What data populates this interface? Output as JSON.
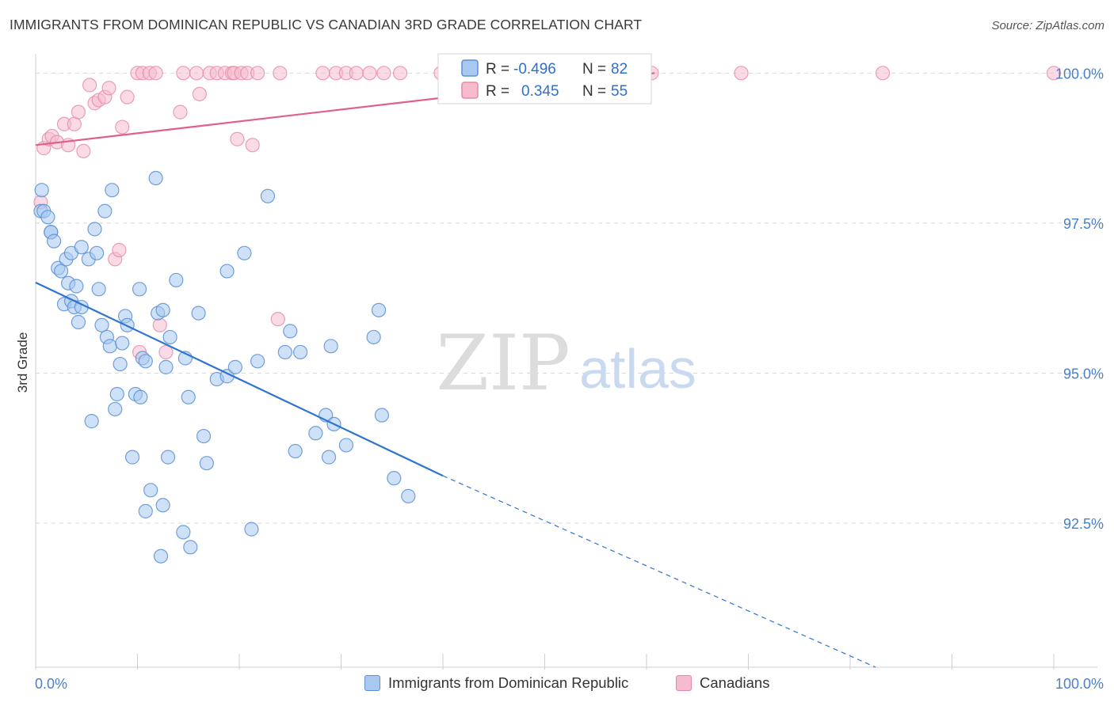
{
  "header": {
    "title": "IMMIGRANTS FROM DOMINICAN REPUBLIC VS CANADIAN 3RD GRADE CORRELATION CHART",
    "source": "Source: ZipAtlas.com"
  },
  "watermark": {
    "zip": "ZIP",
    "atlas": "atlas"
  },
  "colors": {
    "blue_fill": "#a8c8f0",
    "blue_stroke": "#5b8fd6",
    "blue_line": "#2f74d0",
    "pink_fill": "#f6bccd",
    "pink_stroke": "#e58aa6",
    "pink_line": "#e0608a",
    "tick_label": "#4a80c8",
    "grid": "#d8d8d8"
  },
  "legend_stats": [
    {
      "r_label": "R =",
      "r_value": "-0.496",
      "n_label": "N =",
      "n_value": "82"
    },
    {
      "r_label": "R =",
      "r_value": "0.345",
      "n_label": "N =",
      "n_value": "55"
    }
  ],
  "legend_bottom": [
    "Immigrants from Dominican Republic",
    "Canadians"
  ],
  "chart_data": {
    "type": "scatter",
    "xlabel": "",
    "ylabel": "3rd Grade",
    "xlim": [
      0,
      100
    ],
    "ylim": [
      90.1,
      100.4
    ],
    "x_tick_labels": [
      "0.0%",
      "100.0%"
    ],
    "y_ticks": [
      92.5,
      95.0,
      97.5,
      100.0
    ],
    "y_tick_labels": [
      "92.5%",
      "95.0%",
      "97.5%",
      "100.0%"
    ],
    "grid": true,
    "legend_position": "top-center",
    "series": [
      {
        "name": "Immigrants from Dominican Republic",
        "trend": {
          "x": [
            0,
            40
          ],
          "y": [
            96.51,
            93.29
          ],
          "dashed_to": [
            82.5,
            90.1
          ]
        },
        "points": [
          [
            0.5,
            97.7
          ],
          [
            0.6,
            98.05
          ],
          [
            0.8,
            97.7
          ],
          [
            1.2,
            97.6
          ],
          [
            1.5,
            97.35
          ],
          [
            1.5,
            97.35
          ],
          [
            1.8,
            97.2
          ],
          [
            2.2,
            96.75
          ],
          [
            2.5,
            96.7
          ],
          [
            2.8,
            96.15
          ],
          [
            3.0,
            96.9
          ],
          [
            3.2,
            96.5
          ],
          [
            3.5,
            97.0
          ],
          [
            3.5,
            96.2
          ],
          [
            3.8,
            96.1
          ],
          [
            4.0,
            96.45
          ],
          [
            4.2,
            95.85
          ],
          [
            4.5,
            96.1
          ],
          [
            4.5,
            97.1
          ],
          [
            5.2,
            96.9
          ],
          [
            5.5,
            94.2
          ],
          [
            5.8,
            97.4
          ],
          [
            6.0,
            97.0
          ],
          [
            6.2,
            96.4
          ],
          [
            6.5,
            95.8
          ],
          [
            6.8,
            97.7
          ],
          [
            7.0,
            95.6
          ],
          [
            7.3,
            95.45
          ],
          [
            7.5,
            98.05
          ],
          [
            7.8,
            94.4
          ],
          [
            8.0,
            94.65
          ],
          [
            8.3,
            95.15
          ],
          [
            8.5,
            95.5
          ],
          [
            8.8,
            95.95
          ],
          [
            9.0,
            95.8
          ],
          [
            9.5,
            93.6
          ],
          [
            9.8,
            94.65
          ],
          [
            10.2,
            96.4
          ],
          [
            10.3,
            94.6
          ],
          [
            10.5,
            95.25
          ],
          [
            10.8,
            95.2
          ],
          [
            10.8,
            92.7
          ],
          [
            11.3,
            93.05
          ],
          [
            11.8,
            98.25
          ],
          [
            12.0,
            96.0
          ],
          [
            12.3,
            91.95
          ],
          [
            12.5,
            92.8
          ],
          [
            12.5,
            96.05
          ],
          [
            12.8,
            95.1
          ],
          [
            13.0,
            93.6
          ],
          [
            13.2,
            95.6
          ],
          [
            13.8,
            96.55
          ],
          [
            14.5,
            92.35
          ],
          [
            14.7,
            95.25
          ],
          [
            15.0,
            94.6
          ],
          [
            15.2,
            92.1
          ],
          [
            16.0,
            96.0
          ],
          [
            16.5,
            93.95
          ],
          [
            16.8,
            93.5
          ],
          [
            17.8,
            94.9
          ],
          [
            18.8,
            96.7
          ],
          [
            18.8,
            94.95
          ],
          [
            19.6,
            95.1
          ],
          [
            20.5,
            97.0
          ],
          [
            21.2,
            92.4
          ],
          [
            21.8,
            95.2
          ],
          [
            22.8,
            97.95
          ],
          [
            24.5,
            95.35
          ],
          [
            25.0,
            95.7
          ],
          [
            25.5,
            93.7
          ],
          [
            26.0,
            95.35
          ],
          [
            27.5,
            94.0
          ],
          [
            28.5,
            94.3
          ],
          [
            28.8,
            93.6
          ],
          [
            29.0,
            95.45
          ],
          [
            29.3,
            94.15
          ],
          [
            30.5,
            93.8
          ],
          [
            33.2,
            95.6
          ],
          [
            33.7,
            96.05
          ],
          [
            34.0,
            94.3
          ],
          [
            35.2,
            93.25
          ],
          [
            36.6,
            92.95
          ]
        ]
      },
      {
        "name": "Canadians",
        "trend": {
          "x": [
            0,
            60.8
          ],
          "y": [
            98.8,
            100.0
          ]
        },
        "points": [
          [
            0.5,
            97.85
          ],
          [
            0.8,
            98.75
          ],
          [
            1.3,
            98.9
          ],
          [
            1.6,
            98.95
          ],
          [
            2.1,
            98.85
          ],
          [
            2.8,
            99.15
          ],
          [
            3.2,
            98.8
          ],
          [
            3.8,
            99.15
          ],
          [
            4.2,
            99.35
          ],
          [
            4.7,
            98.7
          ],
          [
            5.3,
            99.8
          ],
          [
            5.8,
            99.5
          ],
          [
            6.2,
            99.55
          ],
          [
            6.8,
            99.6
          ],
          [
            7.2,
            99.75
          ],
          [
            7.8,
            96.9
          ],
          [
            8.2,
            97.05
          ],
          [
            8.5,
            99.1
          ],
          [
            9.0,
            99.6
          ],
          [
            10.0,
            100.0
          ],
          [
            10.2,
            95.35
          ],
          [
            10.5,
            100.0
          ],
          [
            11.2,
            100.0
          ],
          [
            11.8,
            100.0
          ],
          [
            12.2,
            95.8
          ],
          [
            12.8,
            95.35
          ],
          [
            14.2,
            99.35
          ],
          [
            14.5,
            100.0
          ],
          [
            15.8,
            100.0
          ],
          [
            16.1,
            99.65
          ],
          [
            17.1,
            100.0
          ],
          [
            17.8,
            100.0
          ],
          [
            18.6,
            100.0
          ],
          [
            19.3,
            100.0
          ],
          [
            19.5,
            100.0
          ],
          [
            19.8,
            98.9
          ],
          [
            20.2,
            100.0
          ],
          [
            20.8,
            100.0
          ],
          [
            21.3,
            98.8
          ],
          [
            21.8,
            100.0
          ],
          [
            23.8,
            95.9
          ],
          [
            24.0,
            100.0
          ],
          [
            28.2,
            100.0
          ],
          [
            29.5,
            100.0
          ],
          [
            30.5,
            100.0
          ],
          [
            31.5,
            100.0
          ],
          [
            32.8,
            100.0
          ],
          [
            34.2,
            100.0
          ],
          [
            35.8,
            100.0
          ],
          [
            39.8,
            100.0
          ],
          [
            53.5,
            100.0
          ],
          [
            60.5,
            100.0
          ],
          [
            69.3,
            100.0
          ],
          [
            83.2,
            100.0
          ],
          [
            100.0,
            100.0
          ]
        ]
      }
    ]
  }
}
